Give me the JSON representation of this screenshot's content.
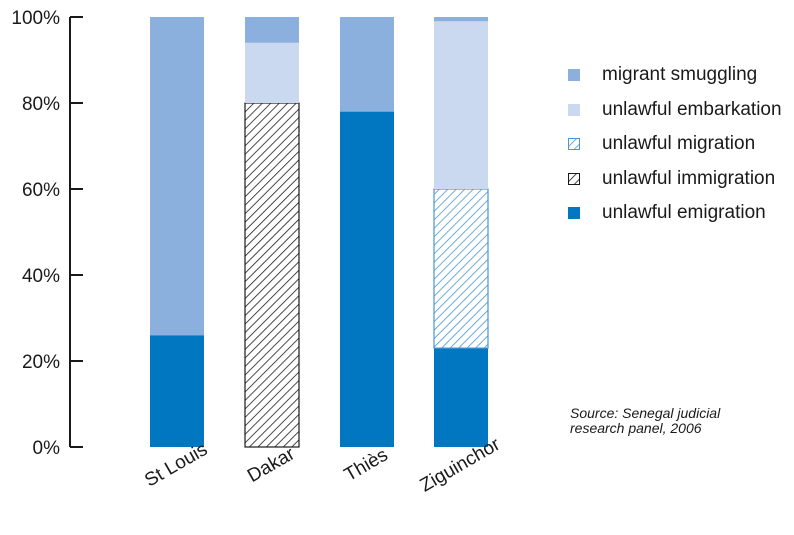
{
  "chart_data": {
    "type": "bar",
    "stacked": true,
    "categories": [
      "St Louis",
      "Dakar",
      "Thiès",
      "Ziguinchor"
    ],
    "series": [
      {
        "name": "unlawful emigration",
        "color": "#0077c0",
        "pattern": "solid",
        "values": [
          26,
          0,
          78,
          23
        ]
      },
      {
        "name": "unlawful immigration",
        "color": "#1a1a1a",
        "pattern": "hatch",
        "values": [
          0,
          80,
          0,
          0
        ]
      },
      {
        "name": "unlawful migration",
        "color": "#4a97d2",
        "pattern": "hatch",
        "values": [
          0,
          0,
          0,
          37
        ]
      },
      {
        "name": "unlawful embarkation",
        "color": "#cad9ef",
        "pattern": "solid",
        "values": [
          0,
          14,
          0,
          39
        ]
      },
      {
        "name": "migrant smuggling",
        "color": "#8cb0de",
        "pattern": "solid",
        "values": [
          74,
          6,
          22,
          1
        ]
      }
    ],
    "yticks": [
      "0%",
      "20%",
      "40%",
      "60%",
      "80%",
      "100%"
    ],
    "ylim": [
      0,
      100
    ],
    "legend_position": "right",
    "grid": false
  },
  "legend": [
    {
      "label": "migrant smuggling"
    },
    {
      "label": "unlawful embarkation"
    },
    {
      "label": "unlawful migration"
    },
    {
      "label": "unlawful immigration"
    },
    {
      "label": "unlawful emigration"
    }
  ],
  "source_lines": [
    "Source: Senegal judicial",
    "research panel, 2006"
  ]
}
